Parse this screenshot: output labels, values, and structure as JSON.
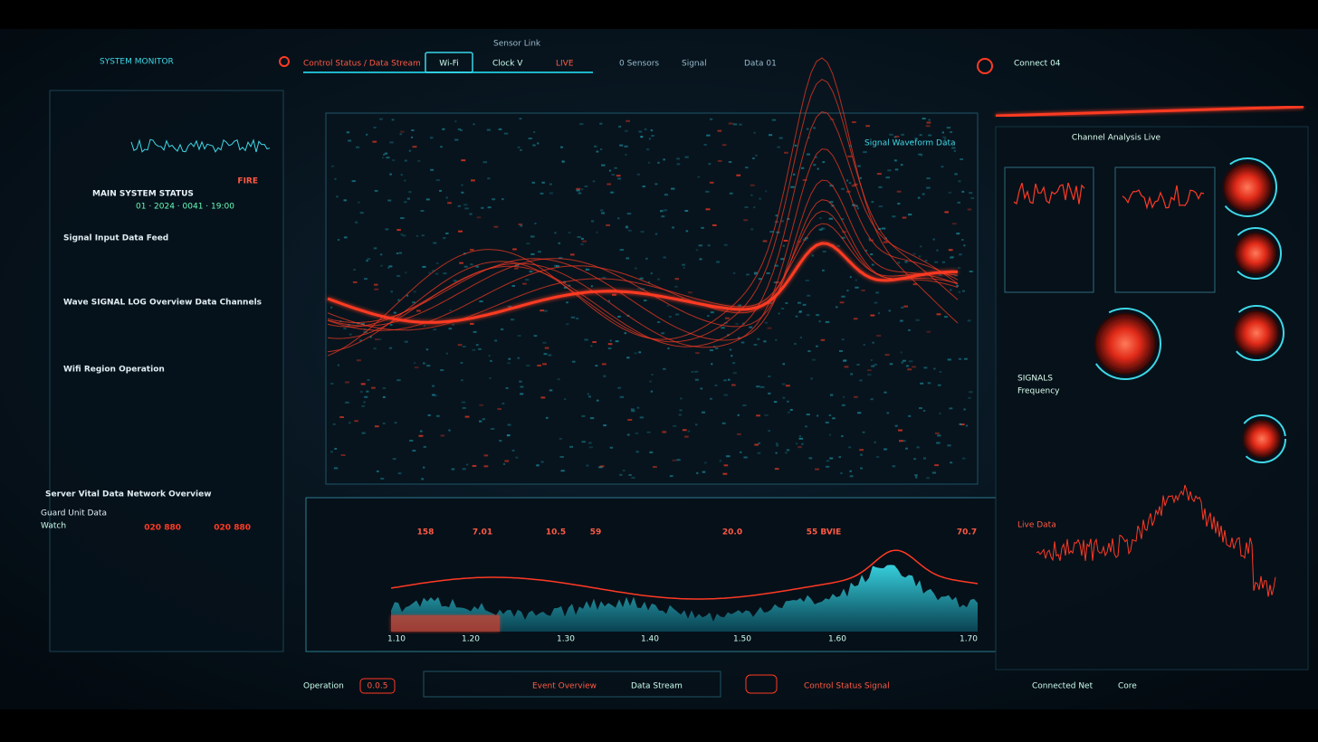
{
  "header": {
    "brand": "SYSTEM MONITOR",
    "tabs": [
      "Control Status / Data Stream",
      "Wi-Fi",
      "Clock V",
      "LIVE"
    ],
    "stats": [
      "Sensor Link",
      "0 Sensors",
      "Signal",
      "Data 01"
    ],
    "status": "Connect 04"
  },
  "left_panel": {
    "title": "MAIN SYSTEM STATUS",
    "alert": "FIRE",
    "sub": "01 · 2024 · 0041 · 19:00",
    "sections": [
      "Signal Input Data Feed",
      "Wave SIGNAL LOG Overview Data Channels",
      "Wifi Region Operation",
      "Server Vital Data Network Overview"
    ],
    "guard": "Guard Unit Data",
    "guard_sub": "Watch",
    "readouts": [
      "020 880",
      "020 880"
    ]
  },
  "main_panel": {
    "legend": "Signal Waveform Data"
  },
  "readouts": [
    "158",
    "7.01",
    "10.5",
    "59",
    "20.0",
    "55 BVIE",
    "70.7"
  ],
  "bottom_axis": [
    "1.10",
    "1.20",
    "1.30",
    "1.40",
    "1.50",
    "1.60",
    "1.70"
  ],
  "right_panel": {
    "title": "Channel Analysis Live",
    "labels": [
      "SIGNALS",
      "Frequency",
      "Live Data"
    ]
  },
  "footer": [
    "Operation",
    "0.0.5",
    "Event Overview",
    "Data Stream",
    "Control Status Signal",
    "Connected Net",
    "Core"
  ]
}
